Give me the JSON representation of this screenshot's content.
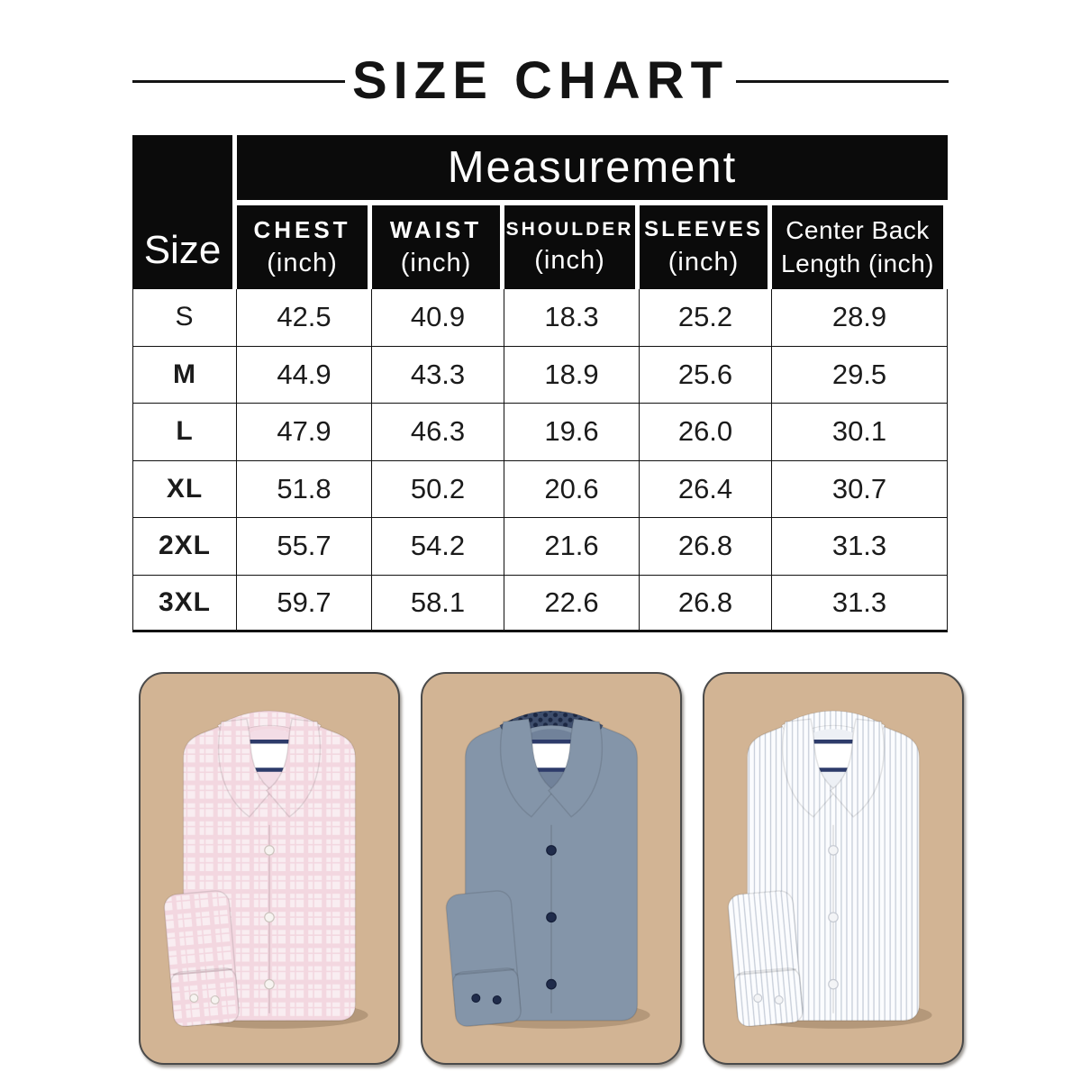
{
  "title": {
    "text": "SIZE CHART"
  },
  "table": {
    "corner_label": "Size",
    "group_header": "Measurement",
    "columns": [
      {
        "id": "chest",
        "lines": [
          "CHEST",
          "(inch)"
        ],
        "emphasis": true
      },
      {
        "id": "waist",
        "lines": [
          "WAIST",
          "(inch)"
        ],
        "emphasis": true
      },
      {
        "id": "shoulder",
        "lines": [
          "SHOULDER",
          "(inch)"
        ],
        "emphasis": true
      },
      {
        "id": "sleeves",
        "lines": [
          "SLEEVES",
          "(inch)"
        ],
        "emphasis": true
      },
      {
        "id": "center-back-length",
        "lines": [
          "Center Back",
          "Length (inch)"
        ],
        "emphasis": false
      }
    ],
    "rows": [
      {
        "size": "S",
        "values": [
          "42.5",
          "40.9",
          "18.3",
          "25.2",
          "28.9"
        ]
      },
      {
        "size": "M",
        "values": [
          "44.9",
          "43.3",
          "18.9",
          "25.6",
          "29.5"
        ]
      },
      {
        "size": "L",
        "values": [
          "47.9",
          "46.3",
          "19.6",
          "26.0",
          "30.1"
        ]
      },
      {
        "size": "XL",
        "values": [
          "51.8",
          "50.2",
          "20.6",
          "26.4",
          "30.7"
        ]
      },
      {
        "size": "2XL",
        "values": [
          "55.7",
          "54.2",
          "21.6",
          "26.8",
          "31.3"
        ]
      },
      {
        "size": "3XL",
        "values": [
          "59.7",
          "58.1",
          "22.6",
          "26.8",
          "31.3"
        ]
      }
    ]
  },
  "products": [
    {
      "id": "shirt-pink-check",
      "description": "pink check dress shirt",
      "pattern": "check",
      "fabric": "#f9edf1",
      "pattern_color": "#f3d7e0",
      "neck": "#f3dde6",
      "button": "#f7f4f1",
      "button_stroke": "#ccc4be",
      "label_border": "#2d3b6a"
    },
    {
      "id": "shirt-slate-blue",
      "description": "slate blue dress shirt",
      "pattern": "solid",
      "fabric": "#8495a9",
      "neck": "#71829a",
      "collar_band_pattern": "dots",
      "collar_band_base": "#3e4e6c",
      "collar_dot": "#1b2742",
      "button": "#202c4b",
      "button_stroke": "#141e38",
      "label_border": "#2d3b6a"
    },
    {
      "id": "shirt-white-stripe",
      "description": "white striped dress shirt",
      "pattern": "stripe",
      "fabric": "#fbfcfe",
      "pattern_color": "#c7ced9",
      "neck": "#edf0f5",
      "button": "#f3f4f6",
      "button_stroke": "#c6cad2",
      "label_border": "#2d3b6a"
    }
  ],
  "colors": {
    "page_bg": "#ffffff",
    "title_color": "#141414",
    "header_bg": "#0b0b0b",
    "header_text": "#ffffff",
    "table_border": "#111111",
    "card_bg": "#d2b494",
    "card_border": "#4a4a4a"
  }
}
